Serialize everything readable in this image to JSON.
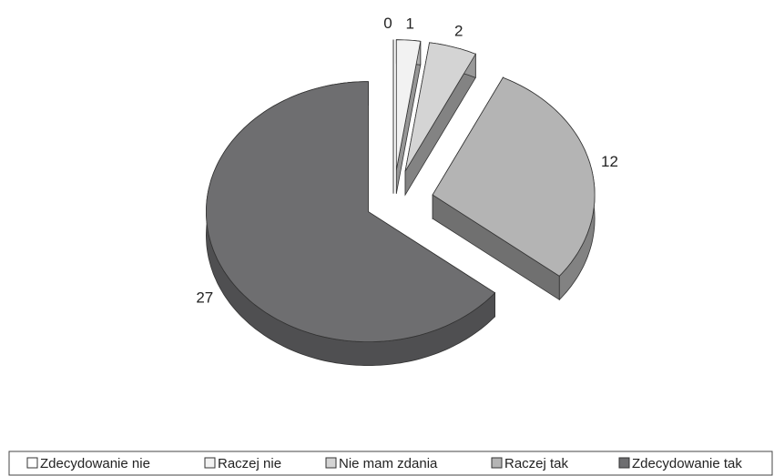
{
  "chart_data": {
    "type": "pie",
    "categories": [
      "Zdecydowanie nie",
      "Raczej nie",
      "Nie mam zdania",
      "Raczej tak",
      "Zdecydowanie tak"
    ],
    "values": [
      0,
      1,
      2,
      12,
      27
    ],
    "colors": [
      "#ffffff",
      "#f2f2f2",
      "#d4d4d4",
      "#b4b4b4",
      "#6e6e70"
    ],
    "legend": "bottom"
  }
}
